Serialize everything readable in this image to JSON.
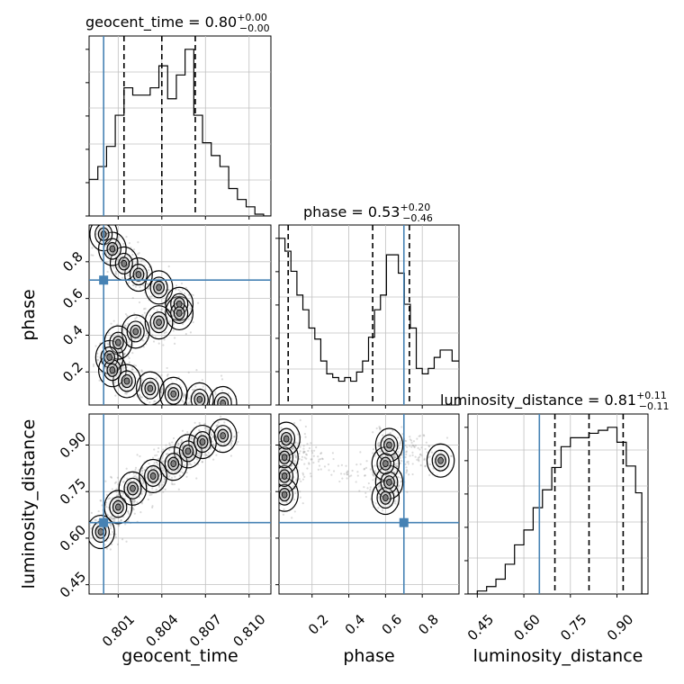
{
  "colors": {
    "truth": "#4682b4",
    "hist": "#000000",
    "grid": "#c0c0c0",
    "quantile": "#000000"
  },
  "chart_data": {
    "type": "corner",
    "parameters": [
      "geocent_time",
      "phase",
      "luminosity_distance"
    ],
    "axis_labels": {
      "geocent_time": "geocent_time",
      "phase": "phase",
      "luminosity_distance": "luminosity_distance"
    },
    "titles": [
      {
        "param": "geocent_time",
        "text": "geocent_time = 0.80",
        "sup": "+0.00",
        "sub": "−0.00"
      },
      {
        "param": "phase",
        "text": "phase = 0.53",
        "sup": "+0.20",
        "sub": "−0.46"
      },
      {
        "param": "luminosity_distance",
        "text": "luminosity_distance = 0.81",
        "sup": "+0.11",
        "sub": "−0.11"
      }
    ],
    "ranges": {
      "geocent_time": [
        0.799,
        0.8115
      ],
      "phase": [
        0.02,
        1.0
      ],
      "luminosity_distance": [
        0.42,
        1.0
      ]
    },
    "ticks": {
      "geocent_time": [
        "0.801",
        "0.804",
        "0.807",
        "0.810"
      ],
      "phase": [
        "0.2",
        "0.4",
        "0.6",
        "0.8"
      ],
      "luminosity_distance": [
        "0.45",
        "0.60",
        "0.75",
        "0.90"
      ]
    },
    "tick_values": {
      "geocent_time": [
        0.801,
        0.804,
        0.807,
        0.81
      ],
      "phase": [
        0.2,
        0.4,
        0.6,
        0.8
      ],
      "luminosity_distance": [
        0.45,
        0.6,
        0.75,
        0.9
      ]
    },
    "truths": {
      "geocent_time": 0.8,
      "phase": 0.7,
      "luminosity_distance": 0.65
    },
    "quantiles": {
      "geocent_time": [
        0.8014,
        0.804,
        0.8063
      ],
      "phase": [
        0.07,
        0.53,
        0.73
      ],
      "luminosity_distance": [
        0.7,
        0.81,
        0.92
      ]
    },
    "histograms": {
      "geocent_time": {
        "edges": [
          0.799,
          0.7996,
          0.8002,
          0.8008,
          0.8014,
          0.802,
          0.8026,
          0.8032,
          0.8038,
          0.8044,
          0.805,
          0.8056,
          0.8062,
          0.8068,
          0.8074,
          0.808,
          0.8086,
          0.8092,
          0.8098,
          0.8104,
          0.811,
          0.8115
        ],
        "counts": [
          0.2,
          0.27,
          0.38,
          0.55,
          0.7,
          0.66,
          0.66,
          0.7,
          0.82,
          0.64,
          0.77,
          0.91,
          0.55,
          0.4,
          0.33,
          0.27,
          0.15,
          0.09,
          0.05,
          0.01,
          0.0
        ]
      },
      "phase": {
        "edges": [
          0.02,
          0.0525,
          0.085,
          0.1175,
          0.15,
          0.1825,
          0.215,
          0.2475,
          0.28,
          0.3125,
          0.345,
          0.3775,
          0.41,
          0.4425,
          0.475,
          0.5075,
          0.54,
          0.5725,
          0.605,
          0.6375,
          0.67,
          0.7025,
          0.735,
          0.7675,
          0.8,
          0.8325,
          0.865,
          0.8975,
          0.93,
          0.9625,
          1.0
        ],
        "counts": [
          0.91,
          0.84,
          0.73,
          0.6,
          0.52,
          0.42,
          0.36,
          0.24,
          0.17,
          0.15,
          0.13,
          0.15,
          0.13,
          0.18,
          0.24,
          0.37,
          0.52,
          0.6,
          0.82,
          0.82,
          0.72,
          0.55,
          0.42,
          0.2,
          0.17,
          0.2,
          0.26,
          0.3,
          0.3,
          0.24
        ]
      },
      "luminosity_distance": {
        "edges": [
          0.42,
          0.45,
          0.48,
          0.51,
          0.54,
          0.57,
          0.6,
          0.63,
          0.66,
          0.69,
          0.72,
          0.75,
          0.78,
          0.81,
          0.84,
          0.87,
          0.9,
          0.93,
          0.96,
          0.98,
          1.0
        ],
        "counts": [
          0.0,
          0.02,
          0.05,
          0.1,
          0.2,
          0.33,
          0.43,
          0.58,
          0.7,
          0.85,
          0.99,
          1.05,
          1.05,
          1.08,
          1.1,
          1.12,
          1.02,
          0.86,
          0.68,
          0.0
        ]
      }
    },
    "pairs": [
      {
        "x": "geocent_time",
        "y": "phase",
        "ridge": [
          [
            0.8,
            0.95
          ],
          [
            0.8006,
            0.87
          ],
          [
            0.8014,
            0.79
          ],
          [
            0.8024,
            0.73
          ],
          [
            0.8038,
            0.66
          ],
          [
            0.8052,
            0.57
          ],
          [
            0.8052,
            0.52
          ],
          [
            0.8038,
            0.47
          ],
          [
            0.8022,
            0.42
          ],
          [
            0.801,
            0.36
          ],
          [
            0.8004,
            0.28
          ],
          [
            0.8006,
            0.21
          ],
          [
            0.8016,
            0.15
          ],
          [
            0.8032,
            0.11
          ],
          [
            0.8048,
            0.08
          ],
          [
            0.8066,
            0.05
          ],
          [
            0.8082,
            0.03
          ]
        ]
      },
      {
        "x": "geocent_time",
        "y": "luminosity_distance",
        "ridge": [
          [
            0.7998,
            0.62
          ],
          [
            0.801,
            0.7
          ],
          [
            0.802,
            0.76
          ],
          [
            0.8034,
            0.8
          ],
          [
            0.8048,
            0.84
          ],
          [
            0.8058,
            0.88
          ],
          [
            0.8068,
            0.91
          ],
          [
            0.8082,
            0.93
          ]
        ]
      },
      {
        "x": "phase",
        "y": "luminosity_distance",
        "ridge": [
          [
            0.05,
            0.74
          ],
          [
            0.05,
            0.8
          ],
          [
            0.05,
            0.86
          ],
          [
            0.06,
            0.92
          ],
          [
            0.6,
            0.73
          ],
          [
            0.62,
            0.78
          ],
          [
            0.6,
            0.84
          ],
          [
            0.62,
            0.9
          ],
          [
            0.9,
            0.85
          ]
        ]
      }
    ]
  }
}
